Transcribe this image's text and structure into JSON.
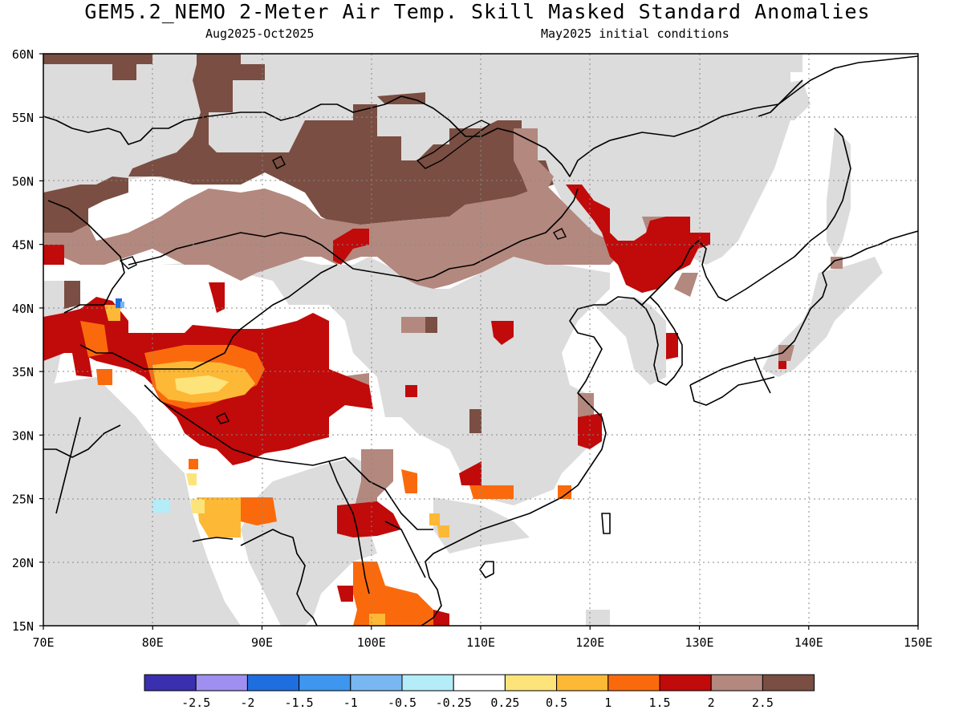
{
  "header": {
    "title": "GEM5.2_NEMO 2-Meter Air Temp. Skill Masked Standard Anomalies",
    "period": "Aug2025-Oct2025",
    "init": "May2025 initial conditions"
  },
  "axes": {
    "lon_labels": [
      "70E",
      "80E",
      "90E",
      "100E",
      "110E",
      "120E",
      "130E",
      "140E",
      "150E"
    ],
    "lat_labels": [
      "60N",
      "55N",
      "50N",
      "45N",
      "40N",
      "35N",
      "30N",
      "25N",
      "20N",
      "15N"
    ],
    "lon_range": [
      70,
      150
    ],
    "lat_range": [
      15,
      60
    ]
  },
  "colorbar": {
    "colors": [
      "#3a2fae",
      "#9f8ff0",
      "#1f6ee0",
      "#3e96ee",
      "#78b7f2",
      "#b4ecf8",
      "#ffffff",
      "#fde47a",
      "#fdb836",
      "#fa6a0c",
      "#c10a0a",
      "#b3887e",
      "#7a4e42"
    ],
    "labels": [
      "-2.5",
      "-2",
      "-1.5",
      "-1",
      "-0.5",
      "-0.25",
      "0.25",
      "0.5",
      "1",
      "1.5",
      "2",
      "2.5"
    ]
  },
  "colors": {
    "skill_masked": "#dcdcdc",
    "land_outline": "#000000"
  }
}
